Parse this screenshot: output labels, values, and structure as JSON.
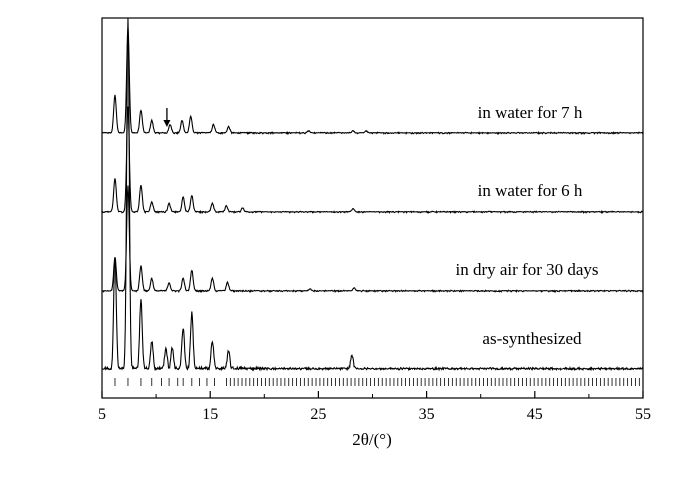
{
  "chart_data": {
    "type": "line",
    "title": "",
    "xlabel": "2θ/(°)",
    "ylabel": "",
    "xlim": [
      5,
      55
    ],
    "xticks": [
      5,
      15,
      25,
      35,
      45,
      55
    ],
    "grid": false,
    "legend": "none",
    "line_color": "#000000",
    "series": [
      {
        "name": "in water for 7 h",
        "peaks": [
          [
            6.2,
            0.36
          ],
          [
            7.4,
            1.0
          ],
          [
            8.6,
            0.22
          ],
          [
            9.6,
            0.12
          ],
          [
            11.3,
            0.08
          ],
          [
            12.4,
            0.12
          ],
          [
            13.2,
            0.16
          ],
          [
            15.3,
            0.08
          ],
          [
            16.7,
            0.06
          ],
          [
            24.1,
            0.02
          ],
          [
            28.2,
            0.02
          ],
          [
            29.4,
            0.02
          ]
        ],
        "arrow_at_x": 11.0
      },
      {
        "name": "in water for 6 h",
        "peaks": [
          [
            6.2,
            0.32
          ],
          [
            7.4,
            1.0
          ],
          [
            8.6,
            0.26
          ],
          [
            9.6,
            0.1
          ],
          [
            11.2,
            0.08
          ],
          [
            12.5,
            0.14
          ],
          [
            13.3,
            0.16
          ],
          [
            15.2,
            0.08
          ],
          [
            16.5,
            0.06
          ],
          [
            18.0,
            0.04
          ],
          [
            28.2,
            0.03
          ]
        ]
      },
      {
        "name": "in dry air for 30 days",
        "peaks": [
          [
            6.2,
            0.32
          ],
          [
            7.4,
            1.0
          ],
          [
            8.6,
            0.24
          ],
          [
            9.6,
            0.12
          ],
          [
            11.2,
            0.08
          ],
          [
            12.5,
            0.12
          ],
          [
            13.3,
            0.2
          ],
          [
            15.2,
            0.12
          ],
          [
            16.6,
            0.08
          ],
          [
            24.2,
            0.02
          ],
          [
            28.3,
            0.03
          ]
        ]
      },
      {
        "name": "as-synthesized",
        "peaks": [
          [
            6.2,
            0.32
          ],
          [
            7.4,
            1.0
          ],
          [
            8.6,
            0.2
          ],
          [
            9.6,
            0.08
          ],
          [
            10.9,
            0.06
          ],
          [
            11.5,
            0.06
          ],
          [
            12.5,
            0.12
          ],
          [
            13.3,
            0.16
          ],
          [
            15.2,
            0.08
          ],
          [
            16.7,
            0.05
          ],
          [
            28.1,
            0.04
          ]
        ]
      }
    ],
    "tick_marks_x": [
      6.2,
      7.4,
      8.6,
      9.6,
      10.5,
      11.2,
      12.0,
      12.5,
      13.3,
      14.0,
      14.7,
      15.4
    ]
  }
}
